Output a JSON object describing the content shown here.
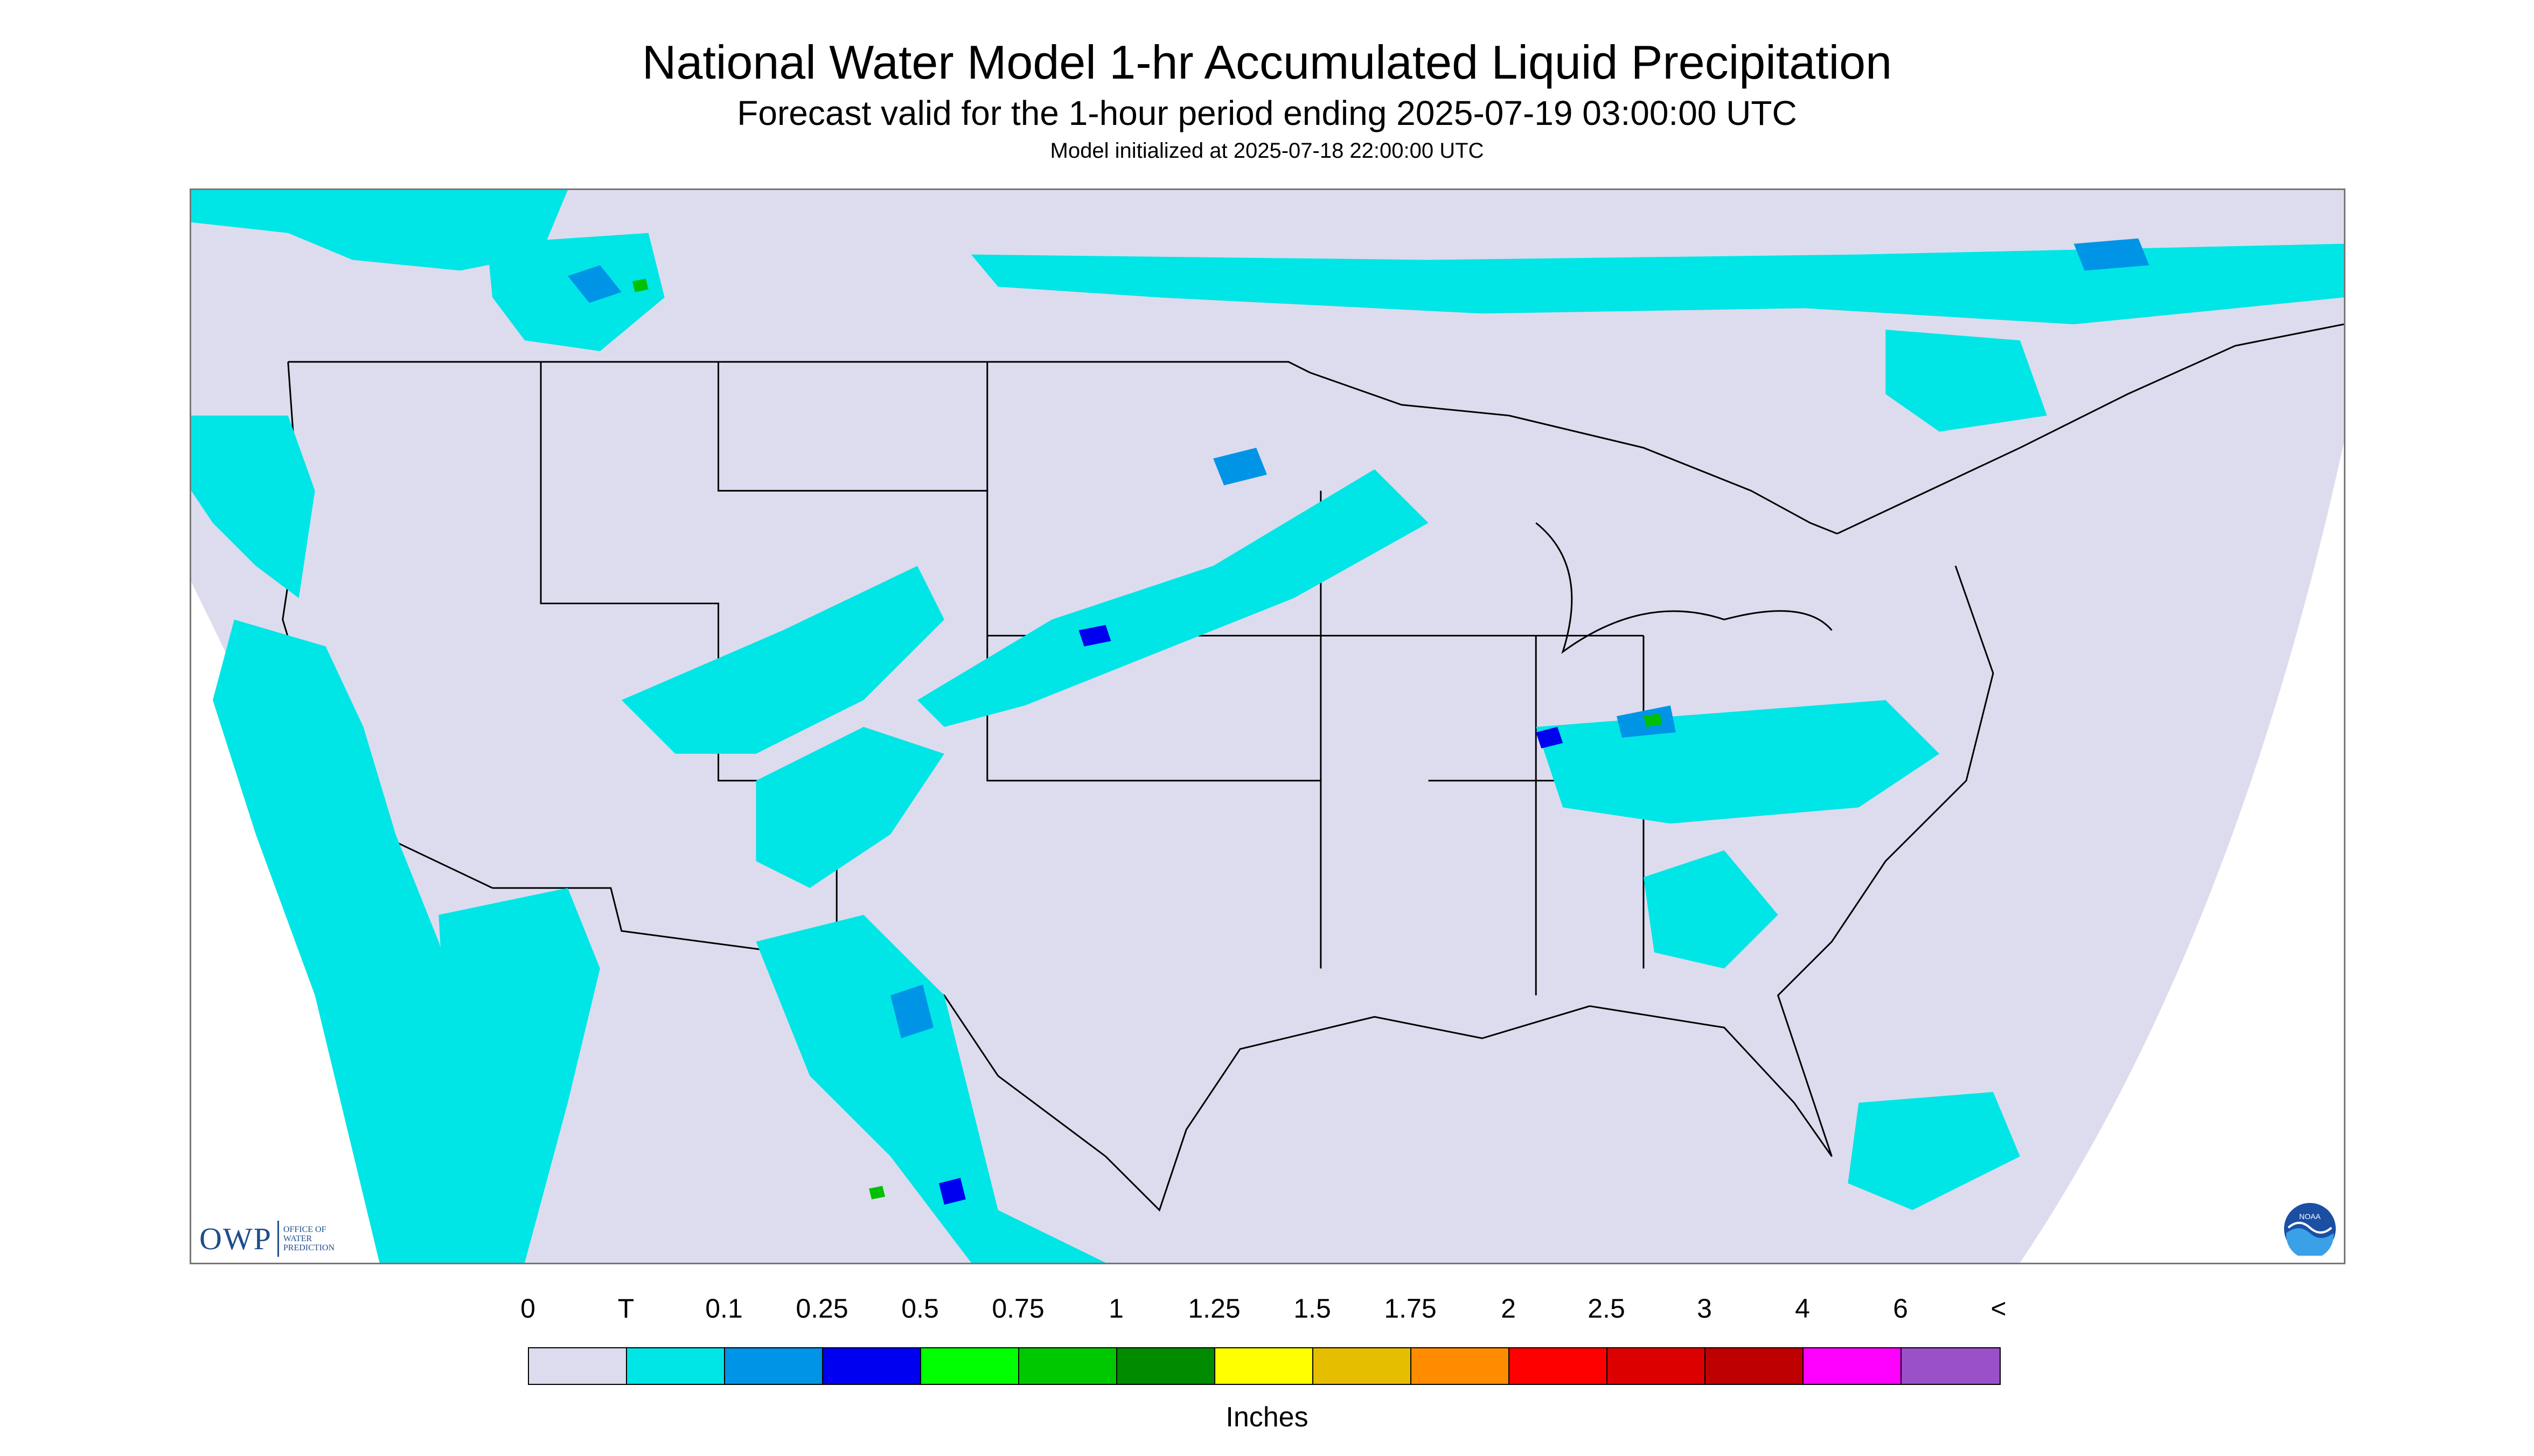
{
  "titles": {
    "main": "National Water Model 1-hr Accumulated Liquid Precipitation",
    "subtitle": "Forecast valid for the 1-hour period ending 2025-07-19 03:00:00 UTC",
    "init": "Model initialized at 2025-07-18 22:00:00 UTC"
  },
  "map": {
    "background_color": "#dcdcee",
    "outside_domain_color": "#ffffff",
    "boundary_color": "#000000",
    "precip_colors": {
      "trace": "#00e5e5",
      "light": "#0094e6",
      "moderate": "#0000f0",
      "heavy": "#00c000"
    }
  },
  "logos": {
    "owp_mark": "OWP",
    "owp_text": "OFFICE OF WATER PREDICTION",
    "noaa_text": "NOAA"
  },
  "legend": {
    "labels": [
      "0",
      "T",
      "0.1",
      "0.25",
      "0.5",
      "0.75",
      "1",
      "1.25",
      "1.5",
      "1.75",
      "2",
      "2.5",
      "3",
      "4",
      "6",
      "<"
    ],
    "colors": [
      "#dcdcee",
      "#00e5e5",
      "#0094e6",
      "#0000f0",
      "#00ff00",
      "#00c800",
      "#008b00",
      "#ffff00",
      "#e6be00",
      "#ff8c00",
      "#ff0000",
      "#dc0000",
      "#be0000",
      "#ff00ff",
      "#9a50c8"
    ],
    "unit": "Inches"
  }
}
